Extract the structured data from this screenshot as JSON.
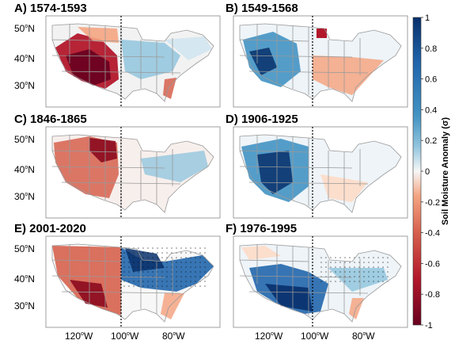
{
  "figure": {
    "panels": [
      {
        "label": "A) 1574-1593",
        "pattern": "west-dry-strong"
      },
      {
        "label": "B) 1549-1568",
        "pattern": "west-wet-east-dry"
      },
      {
        "label": "C) 1846-1865",
        "pattern": "west-dry-moderate"
      },
      {
        "label": "D) 1906-1925",
        "pattern": "west-wet-strong"
      },
      {
        "label": "E) 2001-2020",
        "pattern": "west-dry-east-wet"
      },
      {
        "label": "F) 1976-1995",
        "pattern": "southwest-wet"
      }
    ],
    "lat_labels": [
      {
        "deg": "50",
        "hemi": "N"
      },
      {
        "deg": "40",
        "hemi": "N"
      },
      {
        "deg": "30",
        "hemi": "N"
      }
    ],
    "lon_labels": [
      {
        "deg": "120",
        "hemi": "W"
      },
      {
        "deg": "100",
        "hemi": "W"
      },
      {
        "deg": "80",
        "hemi": "W"
      }
    ],
    "divider_longitude": "100W",
    "colorbar": {
      "label": "Soil Moisture Anomaly (σ)",
      "ticks": [
        "1",
        "0.8",
        "0.6",
        "0.4",
        "0.2",
        "0",
        "-0.2",
        "-0.4",
        "-0.6",
        "-0.8",
        "-1"
      ],
      "min": -1,
      "max": 1,
      "colors": {
        "neg_strong": "#8b0a1e",
        "neg_mid": "#d6604d",
        "neg_light": "#f4a582",
        "neutral": "#f7f7f7",
        "pos_light": "#92c5de",
        "pos_mid": "#4393c3",
        "pos_strong": "#08306b"
      }
    }
  }
}
